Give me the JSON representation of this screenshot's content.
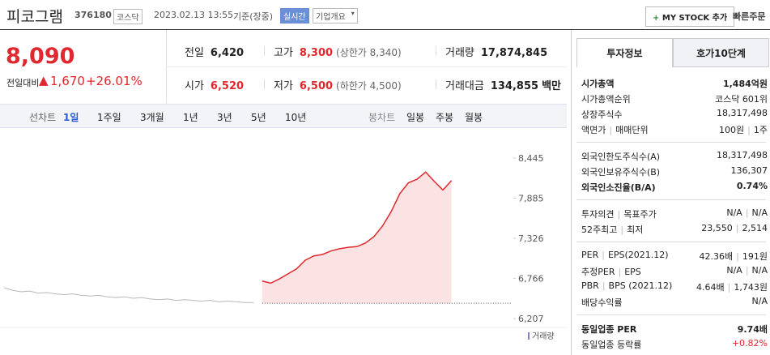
{
  "header": {
    "name": "피코그램",
    "code": "376180",
    "market": "코스닥",
    "datetime": "2023.02.13 13:55",
    "basis": "기준(장중)",
    "realtime": "실시간",
    "company": "기업개요",
    "my_stock": "MY STOCK 추가",
    "quick_order": "빠른주문"
  },
  "price": {
    "current": "8,090",
    "change_label": "전일대비",
    "change": "1,670",
    "change_rate": "+26.01%"
  },
  "quote": [
    [
      {
        "label": "전일",
        "value": "6,420"
      },
      {
        "label": "고가",
        "value": "8,300",
        "sub": "(상한가 8,340)"
      },
      {
        "label": "거래량",
        "value": "17,874,845"
      }
    ],
    [
      {
        "label": "시가",
        "value": "6,520"
      },
      {
        "label": "저가",
        "value": "6,500",
        "sub": "(하한가 4,500)"
      },
      {
        "label": "거래대금",
        "value": "134,855",
        "unit": "백만"
      }
    ]
  ],
  "chart_tabs": {
    "line_label": "선차트",
    "line_periods": [
      "1일",
      "1주일",
      "3개월",
      "1년",
      "3년",
      "5년",
      "10년"
    ],
    "selected": "1일",
    "candle_label": "봉차트",
    "candle_periods": [
      "일봉",
      "주봉",
      "월봉"
    ]
  },
  "chart_data": {
    "type": "line",
    "categories": [
      null,
      null,
      null,
      null,
      null,
      null,
      null,
      null,
      null,
      null,
      null,
      null,
      null,
      null,
      null,
      null,
      null,
      null,
      null,
      null,
      null,
      null,
      null,
      null,
      null,
      null,
      null,
      null,
      null,
      null,
      null,
      null,
      null,
      null,
      null,
      null,
      null,
      null,
      null,
      null,
      null,
      null,
      null,
      null,
      null,
      null,
      null,
      null,
      null,
      null,
      null,
      null,
      null,
      null,
      null,
      null,
      null,
      null,
      null,
      null
    ],
    "series": [
      {
        "color": "#b8b8b8",
        "values": [
          6640,
          6600,
          6580,
          6590,
          6560,
          6570,
          6550,
          6540,
          6550,
          6530,
          6520,
          6530,
          6510,
          6500,
          6510,
          6490,
          6500,
          6480,
          6470,
          6480,
          6460,
          6470,
          6460,
          6450,
          6460,
          6440,
          6450,
          6440,
          6430,
          6430,
          null,
          null,
          null,
          null,
          null,
          null,
          null,
          null,
          null,
          null,
          null,
          null,
          null,
          null,
          null,
          null,
          null,
          null,
          null,
          null,
          null,
          null,
          null,
          null,
          null,
          null,
          null,
          null,
          null,
          null
        ]
      },
      {
        "color": "#e0282e",
        "area_color": "#fce3e3",
        "values": [
          null,
          null,
          null,
          null,
          null,
          null,
          null,
          null,
          null,
          null,
          null,
          null,
          null,
          null,
          null,
          null,
          null,
          null,
          null,
          null,
          null,
          null,
          null,
          null,
          null,
          null,
          null,
          null,
          null,
          null,
          6730,
          6700,
          6760,
          6830,
          6900,
          7020,
          7080,
          7100,
          7150,
          7180,
          7200,
          7210,
          7260,
          7350,
          7500,
          7700,
          7950,
          8100,
          8150,
          8250,
          8120,
          8000,
          8130,
          null,
          null,
          null,
          null,
          null,
          null,
          null
        ]
      }
    ],
    "ref_line": 6420,
    "ylim": [
      6207,
      8445
    ],
    "yticks": [
      {
        "value": 8445,
        "label": "8,445"
      },
      {
        "value": 7885,
        "label": "7,885"
      },
      {
        "value": 7326,
        "label": "7,326"
      },
      {
        "value": 6766,
        "label": "6,766"
      },
      {
        "value": 6207,
        "label": "6,207"
      }
    ],
    "volume_label": "거래량"
  },
  "investment_info": {
    "tabs": [
      "투자정보",
      "호가10단계"
    ],
    "groups": [
      [
        {
          "label": [
            "시가총액"
          ],
          "value": [
            "1,484억원"
          ],
          "bold": true
        },
        {
          "label": [
            "시가총액순위"
          ],
          "value": [
            "코스닥 601위"
          ]
        },
        {
          "label": [
            "상장주식수"
          ],
          "value": [
            "18,317,498"
          ]
        },
        {
          "label": [
            "액면가",
            "매매단위"
          ],
          "value": [
            "100원",
            "1주"
          ]
        }
      ],
      [
        {
          "label": [
            "외국인한도주식수(A)"
          ],
          "value": [
            "18,317,498"
          ]
        },
        {
          "label": [
            "외국인보유주식수(B)"
          ],
          "value": [
            "136,307"
          ]
        },
        {
          "label": [
            "외국인소진율(B/A)"
          ],
          "value": [
            "0.74%"
          ],
          "bold": true
        }
      ],
      [
        {
          "label": [
            "투자의견",
            "목표주가"
          ],
          "value": [
            "N/A",
            "N/A"
          ]
        },
        {
          "label": [
            "52주최고",
            "최저"
          ],
          "value": [
            "23,550",
            "2,514"
          ]
        }
      ],
      [
        {
          "label": [
            "PER",
            "EPS(2021.12)"
          ],
          "value": [
            "42.36배",
            "191원"
          ]
        },
        {
          "label": [
            "추정PER",
            "EPS"
          ],
          "value": [
            "N/A",
            "N/A"
          ]
        },
        {
          "label": [
            "PBR",
            "BPS (2021.12)"
          ],
          "value": [
            "4.64배",
            "1,743원"
          ]
        },
        {
          "label": [
            "배당수익률"
          ],
          "value": [
            "N/A"
          ]
        }
      ],
      [
        {
          "label": [
            "동일업종 PER"
          ],
          "value": [
            "9.74배"
          ],
          "bold": true
        },
        {
          "label": [
            "동일업종 등락률"
          ],
          "value": [
            "+0.82%"
          ],
          "red": true
        }
      ]
    ]
  }
}
